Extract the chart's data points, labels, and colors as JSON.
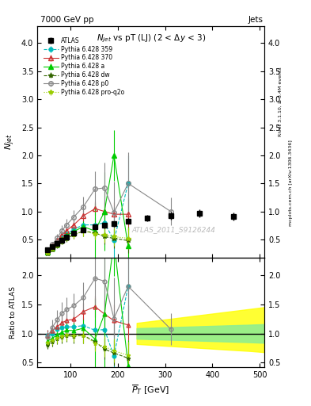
{
  "title_top": "7000 GeV pp",
  "title_right": "Jets",
  "plot_title": "$N_{jet}$ vs pT (LJ) (2 < $\\Delta y$ < 3)",
  "xlabel": "$\\overline{P}_T$ [GeV]",
  "ylabel_main": "$N_{jet}$",
  "ylabel_ratio": "Ratio to ATLAS",
  "watermark": "ATLAS_2011_S9126244",
  "rivet_label": "Rivet 3.1.10, ≥ 3.4M events",
  "arxiv_label": "mcplots.cern.ch [arXiv:1306.3436]",
  "xlim": [
    30,
    510
  ],
  "ylim_main": [
    0.18,
    4.3
  ],
  "ylim_ratio": [
    0.42,
    2.3
  ],
  "atlas_x": [
    52,
    62,
    72,
    82,
    92,
    107,
    127,
    152,
    172,
    192,
    222,
    262,
    312,
    372,
    445
  ],
  "atlas_y": [
    0.31,
    0.37,
    0.43,
    0.49,
    0.54,
    0.61,
    0.67,
    0.72,
    0.75,
    0.78,
    0.83,
    0.88,
    0.93,
    0.97,
    0.91
  ],
  "atlas_yerr": [
    0.02,
    0.02,
    0.02,
    0.02,
    0.03,
    0.03,
    0.04,
    0.04,
    0.05,
    0.05,
    0.05,
    0.06,
    0.07,
    0.07,
    0.07
  ],
  "p359_x": [
    52,
    62,
    72,
    82,
    92,
    107,
    127,
    152,
    172,
    192,
    222
  ],
  "p359_y": [
    0.3,
    0.37,
    0.46,
    0.54,
    0.6,
    0.68,
    0.76,
    0.76,
    0.8,
    0.48,
    1.5
  ],
  "p359_yerr": [
    0.03,
    0.04,
    0.05,
    0.06,
    0.07,
    0.08,
    0.1,
    0.13,
    0.22,
    0.6,
    0.5
  ],
  "p359_color": "#00BBBB",
  "p359_label": "Pythia 6.428 359",
  "p370_x": [
    52,
    62,
    72,
    82,
    92,
    107,
    127,
    152,
    172,
    192,
    222
  ],
  "p370_y": [
    0.3,
    0.39,
    0.48,
    0.58,
    0.66,
    0.76,
    0.92,
    1.05,
    1.0,
    0.95,
    0.95
  ],
  "p370_yerr": [
    0.03,
    0.04,
    0.05,
    0.06,
    0.07,
    0.08,
    0.1,
    0.13,
    0.17,
    0.22,
    0.28
  ],
  "p370_color": "#CC3333",
  "p370_label": "Pythia 6.428 370",
  "pa_x": [
    52,
    62,
    72,
    82,
    92,
    107,
    127,
    152,
    172,
    192,
    222
  ],
  "pa_y": [
    0.27,
    0.34,
    0.42,
    0.5,
    0.57,
    0.64,
    0.73,
    0.65,
    1.0,
    2.0,
    0.38
  ],
  "pa_yerr": [
    0.03,
    0.04,
    0.05,
    0.06,
    0.07,
    0.08,
    0.1,
    0.5,
    0.7,
    0.45,
    0.35
  ],
  "pa_color": "#00CC00",
  "pa_label": "Pythia 6.428 a",
  "pdw_x": [
    52,
    62,
    72,
    82,
    92,
    107,
    127,
    152,
    172,
    192,
    222
  ],
  "pdw_y": [
    0.25,
    0.32,
    0.39,
    0.46,
    0.52,
    0.58,
    0.65,
    0.62,
    0.55,
    0.52,
    0.48
  ],
  "pdw_yerr": [
    0.02,
    0.03,
    0.04,
    0.05,
    0.06,
    0.07,
    0.09,
    0.1,
    0.13,
    0.17,
    0.22
  ],
  "pdw_color": "#336600",
  "pdw_label": "Pythia 6.428 dw",
  "pp0_x": [
    52,
    62,
    72,
    82,
    92,
    107,
    127,
    152,
    172,
    192,
    222,
    312
  ],
  "pp0_y": [
    0.29,
    0.41,
    0.53,
    0.66,
    0.76,
    0.9,
    1.08,
    1.4,
    1.42,
    0.98,
    1.5,
    1.0
  ],
  "pp0_yerr": [
    0.03,
    0.05,
    0.07,
    0.09,
    0.11,
    0.13,
    0.18,
    0.32,
    0.45,
    0.55,
    0.55,
    0.25
  ],
  "pp0_color": "#888888",
  "pp0_label": "Pythia 6.428 p0",
  "pq2o_x": [
    52,
    62,
    72,
    82,
    92,
    107,
    127,
    152,
    172,
    192,
    222
  ],
  "pq2o_y": [
    0.26,
    0.33,
    0.4,
    0.47,
    0.53,
    0.59,
    0.65,
    0.6,
    0.58,
    0.55,
    0.52
  ],
  "pq2o_yerr": [
    0.02,
    0.03,
    0.04,
    0.05,
    0.06,
    0.07,
    0.09,
    0.1,
    0.13,
    0.16,
    0.19
  ],
  "pq2o_color": "#99CC00",
  "pq2o_label": "Pythia 6.428 pro-q2o",
  "band_yellow_x": [
    240,
    280,
    320,
    360,
    400,
    440,
    480,
    510
  ],
  "band_yellow_lo": [
    0.82,
    0.8,
    0.78,
    0.76,
    0.74,
    0.72,
    0.7,
    0.68
  ],
  "band_yellow_hi": [
    1.18,
    1.22,
    1.26,
    1.3,
    1.34,
    1.38,
    1.42,
    1.45
  ],
  "band_green_x": [
    240,
    280,
    320,
    360,
    400,
    440,
    480,
    510
  ],
  "band_green_lo": [
    0.91,
    0.9,
    0.89,
    0.88,
    0.87,
    0.86,
    0.85,
    0.84
  ],
  "band_green_hi": [
    1.09,
    1.1,
    1.11,
    1.12,
    1.13,
    1.14,
    1.15,
    1.16
  ]
}
